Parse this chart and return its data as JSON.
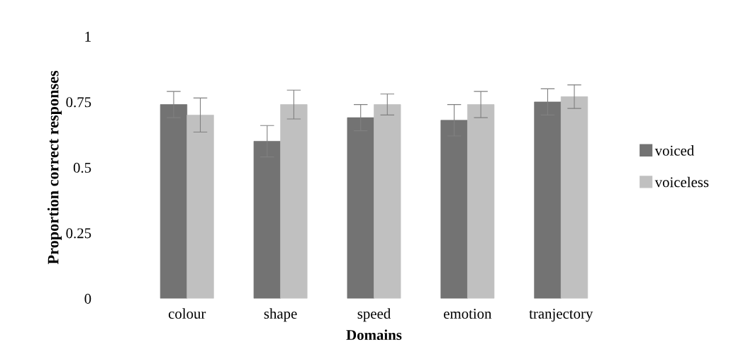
{
  "chart_data": {
    "type": "bar",
    "xlabel": "Domains",
    "ylabel": "Proportion correct responses",
    "categories": [
      "colour",
      "shape",
      "speed",
      "emotion",
      "tranjectory"
    ],
    "series": [
      {
        "name": "voiced",
        "color": "#737373",
        "values": [
          0.74,
          0.6,
          0.69,
          0.68,
          0.75
        ],
        "errors": [
          0.05,
          0.06,
          0.05,
          0.06,
          0.05
        ]
      },
      {
        "name": "voiceless",
        "color": "#c0c0c0",
        "values": [
          0.7,
          0.74,
          0.74,
          0.74,
          0.77
        ],
        "errors": [
          0.065,
          0.055,
          0.04,
          0.05,
          0.045
        ]
      }
    ],
    "ylim": [
      0,
      1
    ],
    "yticks": [
      0,
      {
        "value": 0.25,
        "label": "0.25"
      },
      {
        "value": 0.5,
        "label": "0.5"
      },
      {
        "value": 0.75,
        "label": "0.75"
      },
      1
    ],
    "grid": false,
    "legend": "right"
  }
}
